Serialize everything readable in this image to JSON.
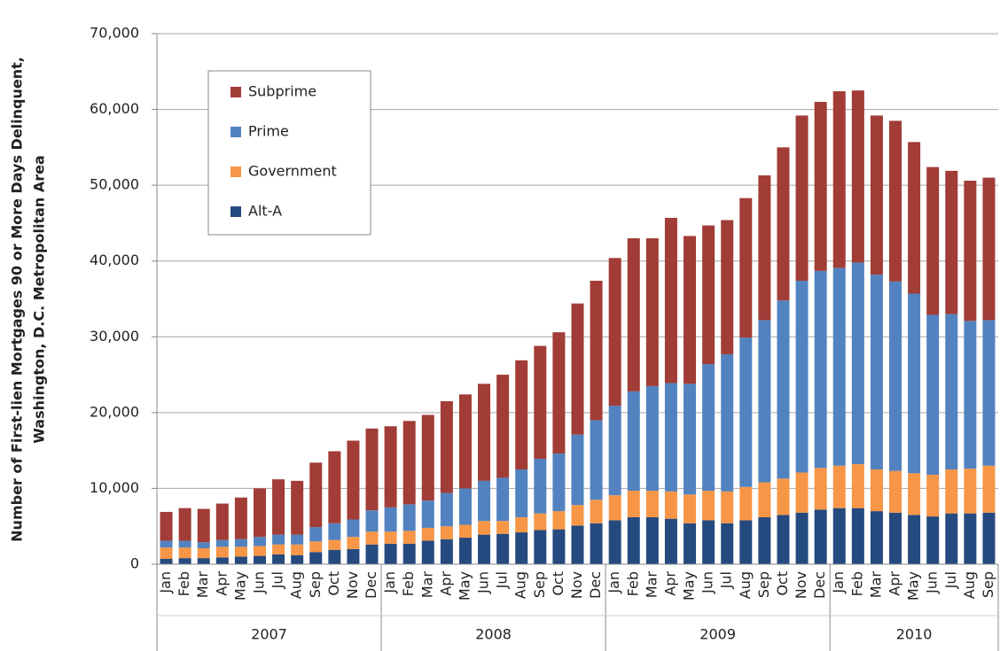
{
  "chart_data": {
    "type": "stacked_bar",
    "ylabel": [
      "Number of First-lien Mortgages 90 or More Days Delinquent,",
      "Washington, D.C. Metropolitan Area"
    ],
    "categories": [
      "Jan",
      "Feb",
      "Mar",
      "Apr",
      "May",
      "Jun",
      "Jul",
      "Aug",
      "Sep",
      "Oct",
      "Nov",
      "Dec",
      "Jan",
      "Feb",
      "Mar",
      "Apr",
      "May",
      "Jun",
      "Jul",
      "Aug",
      "Sep",
      "Oct",
      "Nov",
      "Dec",
      "Jan",
      "Feb",
      "Mar",
      "Apr",
      "May",
      "Jun",
      "Jul",
      "Aug",
      "Sep",
      "Oct",
      "Nov",
      "Dec",
      "Jan",
      "Feb",
      "Mar",
      "Apr",
      "May",
      "Jun",
      "Jul",
      "Aug",
      "Sep"
    ],
    "x_groups": [
      "2007",
      "2008",
      "2009",
      "2010"
    ],
    "series": [
      {
        "name": "Alt-A",
        "color": "#254a7f",
        "values": [
          700,
          800,
          800,
          900,
          1000,
          1100,
          1300,
          1200,
          1600,
          1900,
          2000,
          2600,
          2700,
          2700,
          3100,
          3300,
          3500,
          3900,
          4000,
          4200,
          4500,
          4600,
          5100,
          5400,
          5800,
          6200,
          6200,
          6000,
          5400,
          5800,
          5400,
          5800,
          6200,
          6500,
          6800,
          7200,
          7400,
          7400,
          7000,
          6800,
          6500,
          6300,
          6700,
          6700,
          6800
        ]
      },
      {
        "name": "Government",
        "color": "#f79646",
        "values": [
          1500,
          1400,
          1300,
          1400,
          1300,
          1300,
          1300,
          1400,
          1400,
          1300,
          1600,
          1700,
          1600,
          1700,
          1700,
          1700,
          1700,
          1800,
          1700,
          2000,
          2200,
          2400,
          2700,
          3100,
          3300,
          3500,
          3500,
          3600,
          3800,
          3900,
          4200,
          4400,
          4600,
          4800,
          5300,
          5500,
          5600,
          5800,
          5500,
          5500,
          5500,
          5500,
          5800,
          5900,
          6200
        ]
      },
      {
        "name": "Prime",
        "color": "#5283c0",
        "values": [
          900,
          900,
          800,
          900,
          1000,
          1200,
          1300,
          1300,
          1900,
          2200,
          2300,
          2800,
          3200,
          3500,
          3600,
          4400,
          4800,
          5300,
          5700,
          6300,
          7200,
          7600,
          9300,
          10500,
          11800,
          13100,
          13800,
          14300,
          14600,
          16700,
          18100,
          19700,
          21400,
          23500,
          25300,
          26000,
          26100,
          26600,
          25700,
          25000,
          23700,
          21100,
          20500,
          19500,
          19200
        ]
      },
      {
        "name": "Subprime",
        "color": "#a23c36",
        "values": [
          3800,
          4300,
          4400,
          4800,
          5500,
          6400,
          7300,
          7100,
          8500,
          9500,
          10400,
          10800,
          10700,
          11000,
          11300,
          12100,
          12400,
          12800,
          13600,
          14400,
          14900,
          16000,
          17300,
          18400,
          19500,
          20200,
          19500,
          21800,
          19500,
          18300,
          17700,
          18400,
          19100,
          20200,
          21800,
          22300,
          23300,
          22700,
          21000,
          21200,
          20000,
          19500,
          18900,
          18500,
          18800
        ]
      }
    ],
    "ylim": [
      0,
      70000
    ],
    "yticks": [
      0,
      {
        "value": 10000,
        "label": "10,000"
      },
      {
        "value": 20000,
        "label": "20,000"
      },
      {
        "value": 30000,
        "label": "30,000"
      },
      {
        "value": 40000,
        "label": "40,000"
      },
      {
        "value": 50000,
        "label": "50,000"
      },
      {
        "value": 60000,
        "label": "60,000"
      },
      {
        "value": 70000,
        "label": "70,000"
      }
    ],
    "grid": true,
    "legend": "upper left"
  }
}
